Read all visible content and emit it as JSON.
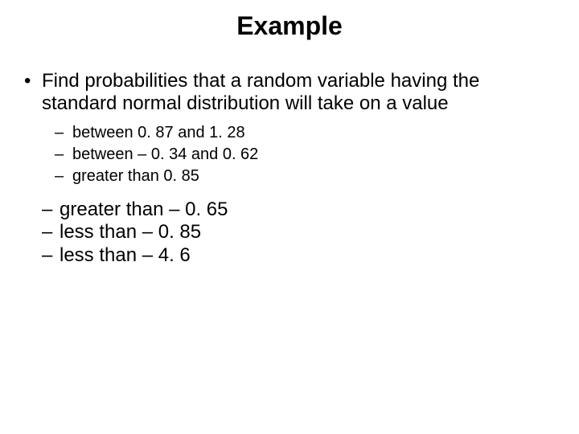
{
  "title": "Example",
  "mainBullet": "Find probabilities that a random variable having the standard normal distribution will take on a value",
  "subItemsSmall": [
    "between 0. 87 and 1. 28",
    "between – 0. 34 and 0. 62",
    "greater than 0. 85"
  ],
  "subItemsLarge": [
    "greater than – 0. 65",
    "less than – 0. 85",
    "less than – 4. 6"
  ],
  "style": {
    "background_color": "#ffffff",
    "text_color": "#000000",
    "font_family": "Arial",
    "title_fontsize": 32,
    "title_weight": "bold",
    "level1_fontsize": 24,
    "level2_small_fontsize": 20,
    "level2_large_fontsize": 24,
    "bullet_char": "•",
    "dash_char": "–",
    "slide_width": 720,
    "slide_height": 540
  }
}
